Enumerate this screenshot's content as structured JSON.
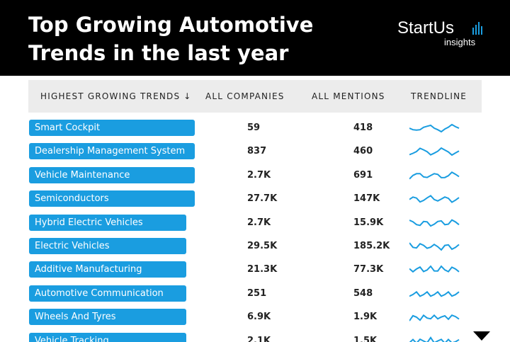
{
  "header": {
    "title_line1": "Top Growing Automotive",
    "title_line2": "Trends in the last year",
    "logo": "StartUs",
    "logo_sub": "insights"
  },
  "table": {
    "columns": [
      "HIGHEST GROWING TRENDS ↓",
      "ALL COMPANIES",
      "ALL MENTIONS",
      "TRENDLINE"
    ],
    "rows": [
      [
        "Smart Cockpit",
        "59",
        "418"
      ],
      [
        "Dealership Management System",
        "837",
        "460"
      ],
      [
        "Vehicle Maintenance",
        "2.7K",
        "691"
      ],
      [
        "Semiconductors",
        "27.7K",
        "147K"
      ],
      [
        "Hybrid Electric Vehicles",
        "2.7K",
        "15.9K"
      ],
      [
        "Electric Vehicles",
        "29.5K",
        "185.2K"
      ],
      [
        "Additive Manufacturing",
        "21.3K",
        "77.3K"
      ],
      [
        "Automotive Communication",
        "251",
        "548"
      ],
      [
        "Wheels And Tyres",
        "6.9K",
        "1.9K"
      ],
      [
        "Vehicle Tracking",
        "2.1K",
        "1.5K"
      ]
    ]
  }
}
